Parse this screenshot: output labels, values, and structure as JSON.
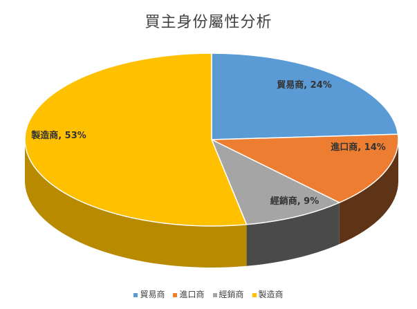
{
  "chart_data": {
    "type": "pie",
    "title": "買主身份屬性分析",
    "categories": [
      "貿易商",
      "進口商",
      "經銷商",
      "製造商"
    ],
    "values": [
      24,
      14,
      9,
      53
    ],
    "data_labels": [
      "貿易商, 24%",
      "進口商, 14%",
      "經銷商, 9%",
      "製造商, 53%"
    ],
    "colors": [
      "#5B9BD5",
      "#ED7D31",
      "#A5A5A5",
      "#FFC000"
    ],
    "side_colors": [
      "#3A6796",
      "#5E3316",
      "#4A4A4A",
      "#B78A00"
    ],
    "legend_position": "bottom",
    "style": "3d"
  }
}
